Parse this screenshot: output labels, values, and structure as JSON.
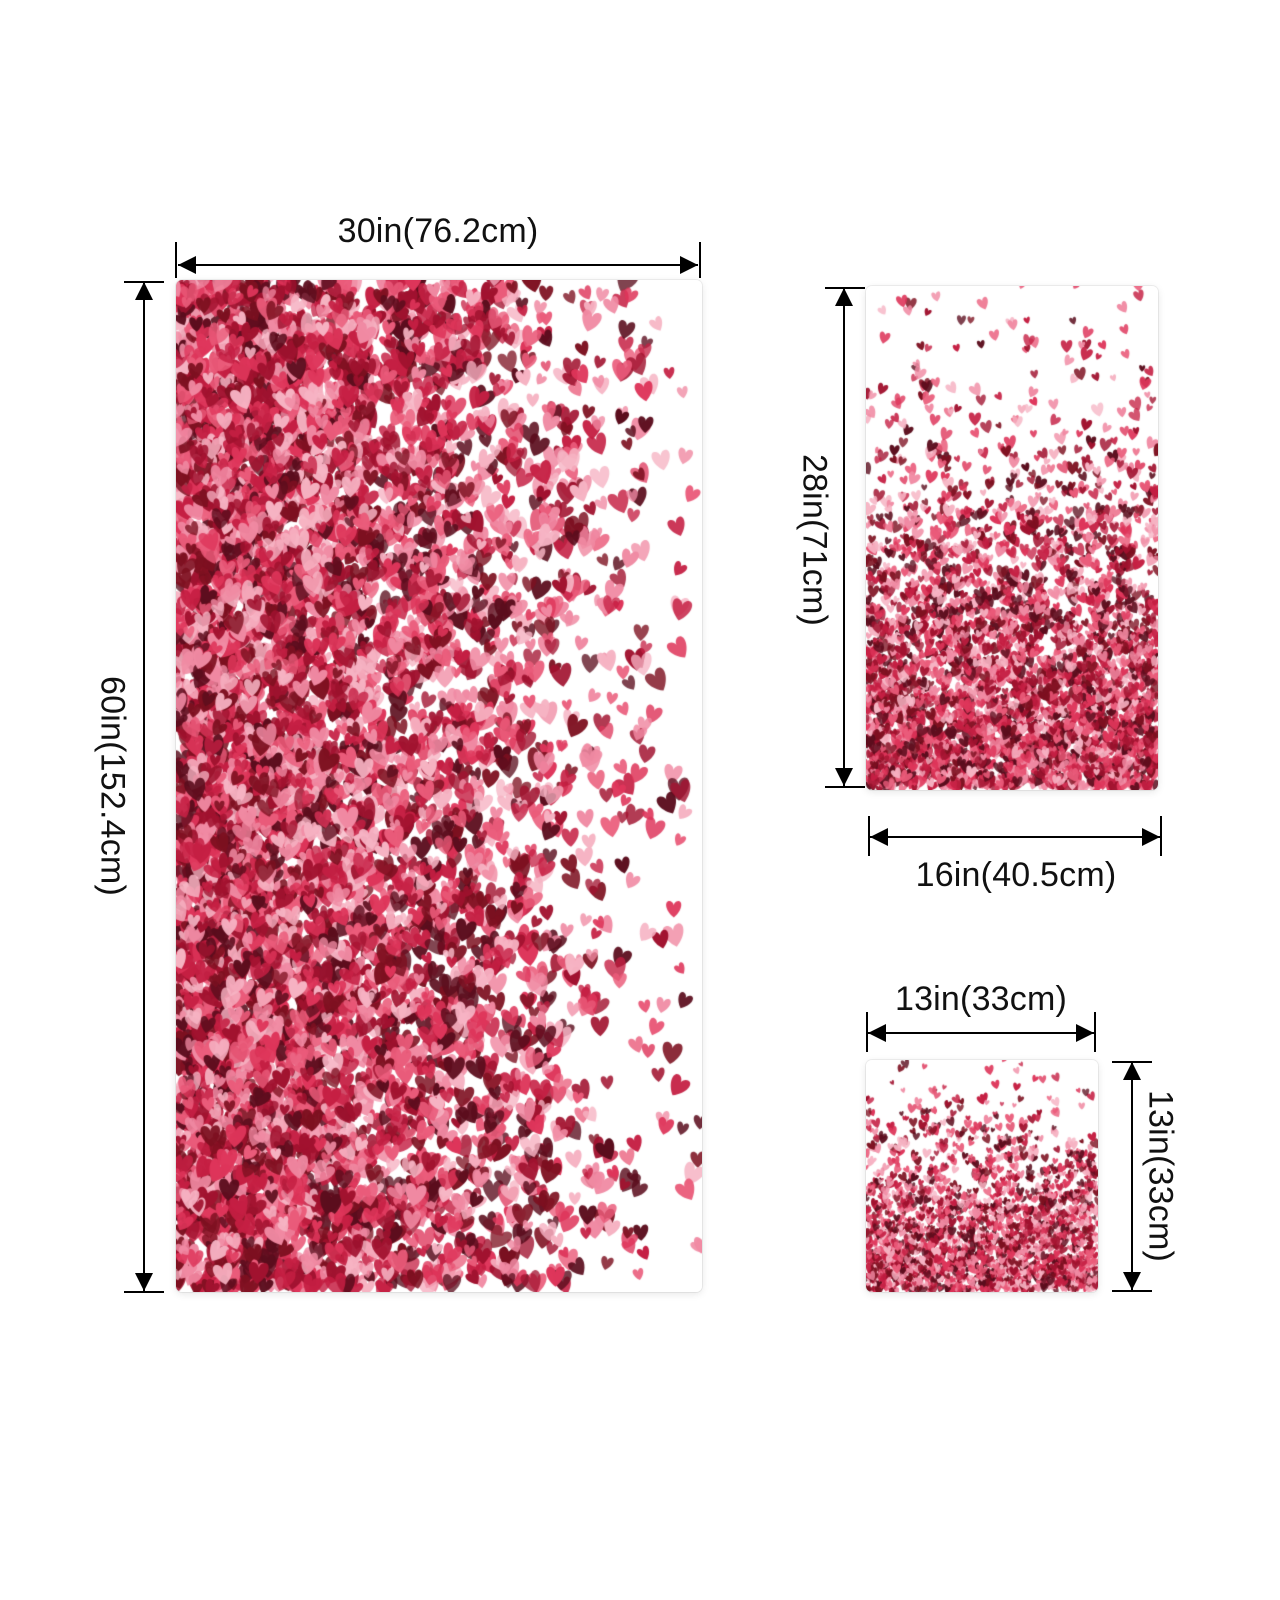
{
  "dimensions": {
    "bath_towel": {
      "width_label": "30in(76.2cm)",
      "height_label": "60in(152.4cm)"
    },
    "hand_towel": {
      "width_label": "16in(40.5cm)",
      "height_label": "28in(71cm)"
    },
    "washcloth": {
      "width_label": "13in(33cm)",
      "height_label": "13in(33cm)"
    }
  },
  "palette": {
    "heart_colors": [
      "#5b0d1d",
      "#7d1020",
      "#a1122f",
      "#c51f43",
      "#de355a",
      "#ea5b7a",
      "#f08aa3",
      "#f6b3c3"
    ],
    "background": "#ffffff",
    "dimension_lines": "#000000"
  },
  "icons": {
    "heart": "heart-icon",
    "arrow": "arrowhead-icon"
  }
}
